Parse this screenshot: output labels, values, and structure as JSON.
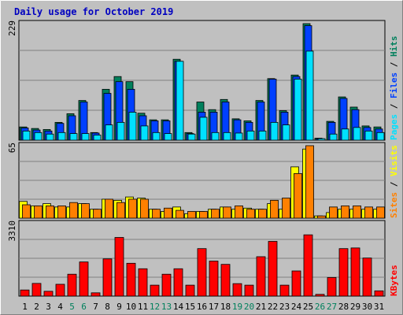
{
  "chart_data": {
    "type": "bar",
    "title": "Daily usage for October 2019",
    "categories": [
      "1",
      "2",
      "3",
      "4",
      "5",
      "6",
      "7",
      "8",
      "9",
      "10",
      "11",
      "12",
      "13",
      "14",
      "15",
      "16",
      "17",
      "18",
      "19",
      "20",
      "21",
      "22",
      "23",
      "24",
      "25",
      "26",
      "27",
      "28",
      "29",
      "30",
      "31"
    ],
    "weekend_days": [
      "5",
      "6",
      "12",
      "13",
      "19",
      "20",
      "26",
      "27"
    ],
    "colors": {
      "background": "#c0c0c0",
      "panel": "#c0c0c0",
      "title": "#0000c0",
      "hits": "#00805c",
      "files": "#0040ff",
      "pages": "#00e0ff",
      "visits": "#ffff00",
      "sites": "#ff8000",
      "kbytes": "#ff0000",
      "weekend_tick": "#00805c",
      "weekday_tick": "#000000"
    },
    "panels": [
      {
        "id": "hits-files-pages",
        "max_label": "229",
        "ylim": [
          0,
          229
        ],
        "legend": [
          {
            "text": "Pages",
            "color": "#00e0ff"
          },
          {
            "text": " / ",
            "color": "#000000"
          },
          {
            "text": "Files",
            "color": "#0040ff"
          },
          {
            "text": " / ",
            "color": "#000000"
          },
          {
            "text": "Hits",
            "color": "#00805c"
          }
        ],
        "series": [
          {
            "name": "Hits",
            "color": "#00805c",
            "values": [
              26,
              23,
              21,
              35,
              52,
              78,
              15,
              100,
              125,
              115,
              53,
              40,
              40,
              159,
              15,
              75,
              60,
              80,
              42,
              38,
              78,
              121,
              58,
              128,
              229,
              4,
              37,
              85,
              65,
              28,
              26
            ]
          },
          {
            "name": "Files",
            "color": "#0040ff",
            "values": [
              24,
              20,
              18,
              33,
              48,
              75,
              14,
              92,
              115,
              100,
              48,
              38,
              38,
              155,
              13,
              55,
              55,
              75,
              40,
              35,
              75,
              120,
              55,
              125,
              225,
              3,
              35,
              82,
              60,
              25,
              22
            ]
          },
          {
            "name": "Pages",
            "color": "#00e0ff",
            "values": [
              18,
              15,
              12,
              15,
              13,
              13,
              10,
              30,
              35,
              55,
              28,
              15,
              13,
              155,
              12,
              45,
              15,
              15,
              14,
              18,
              18,
              35,
              30,
              120,
              175,
              3,
              12,
              22,
              25,
              18,
              15
            ]
          }
        ]
      },
      {
        "id": "visits-sites",
        "max_label": "65",
        "ylim": [
          0,
          65
        ],
        "legend": [
          {
            "text": "Sites",
            "color": "#ff8000"
          },
          {
            "text": " / ",
            "color": "#000000"
          },
          {
            "text": "Visits",
            "color": "#ffff00"
          }
        ],
        "series": [
          {
            "name": "Visits",
            "color": "#ffff00",
            "values": [
              15,
              11,
              13,
              10,
              10,
              13,
              8,
              17,
              16,
              19,
              18,
              8,
              6,
              10,
              4,
              6,
              8,
              10,
              8,
              9,
              8,
              13,
              8,
              46,
              62,
              2,
              5,
              8,
              8,
              8,
              8
            ]
          },
          {
            "name": "Sites",
            "color": "#ff8000",
            "values": [
              12,
              11,
              11,
              11,
              14,
              13,
              8,
              17,
              14,
              17,
              17,
              8,
              9,
              7,
              6,
              6,
              8,
              10,
              11,
              8,
              8,
              16,
              18,
              40,
              65,
              2,
              10,
              11,
              11,
              10,
              10
            ]
          }
        ]
      },
      {
        "id": "kbytes",
        "max_label": "3310",
        "ylim": [
          0,
          3310
        ],
        "legend": [
          {
            "text": "KBytes",
            "color": "#ff0000"
          }
        ],
        "series": [
          {
            "name": "KBytes",
            "color": "#ff0000",
            "values": [
              280,
              580,
              220,
              540,
              1000,
              1560,
              150,
              1700,
              2680,
              1500,
              1250,
              500,
              1000,
              1250,
              500,
              2170,
              1600,
              1450,
              570,
              500,
              1800,
              2500,
              500,
              1150,
              2800,
              80,
              850,
              2170,
              2200,
              1740,
              240
            ]
          }
        ]
      }
    ]
  }
}
